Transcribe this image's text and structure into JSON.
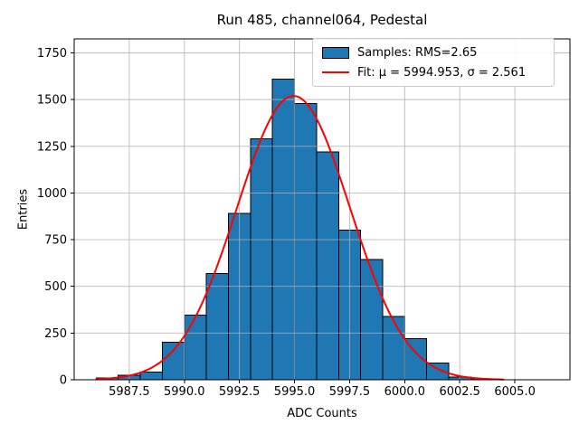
{
  "title": "Run 485, channel064, Pedestal",
  "axes": {
    "xlabel": "ADC Counts",
    "ylabel": "Entries"
  },
  "legend": {
    "samples_label": "Samples: RMS=2.65",
    "fit_label": "Fit: μ = 5994.953, σ = 2.561"
  },
  "colors": {
    "bar_fill": "#1f77b4",
    "bar_edge": "#000000",
    "fit_line": "#ff0000",
    "grid": "#b0b0b0",
    "spine": "#000000",
    "text": "#000000"
  },
  "chart_data": {
    "type": "bar",
    "subtype": "histogram_with_gaussian_fit",
    "title": "Run 485, channel064, Pedestal",
    "xlabel": "ADC Counts",
    "ylabel": "Entries",
    "bin_edges": [
      5986,
      5987,
      5988,
      5989,
      5990,
      5991,
      5992,
      5993,
      5994,
      5995,
      5996,
      5997,
      5998,
      5999,
      6000,
      6001,
      6002,
      6003,
      6004
    ],
    "counts": [
      10,
      25,
      40,
      200,
      345,
      570,
      890,
      1290,
      1610,
      1480,
      1220,
      800,
      645,
      340,
      220,
      90,
      15,
      5
    ],
    "fit": {
      "shape": "gaussian",
      "mu": 5994.953,
      "sigma": 2.561,
      "amplitude": 1520,
      "x_range": [
        5986.0,
        6004.5
      ]
    },
    "stats": {
      "rms": 2.65,
      "fit_mu": 5994.953,
      "fit_sigma": 2.561
    },
    "xlim": [
      5985.0,
      6007.5
    ],
    "ylim": [
      0,
      1825
    ],
    "xticks": [
      5987.5,
      5990.0,
      5992.5,
      5995.0,
      5997.5,
      6000.0,
      6002.5,
      6005.0
    ],
    "xtick_labels": [
      "5987.5",
      "5990.0",
      "5992.5",
      "5995.0",
      "5997.5",
      "6000.0",
      "6002.5",
      "6005.0"
    ],
    "yticks": [
      0,
      250,
      500,
      750,
      1000,
      1250,
      1500,
      1750
    ],
    "ytick_labels": [
      "0",
      "250",
      "500",
      "750",
      "1000",
      "1250",
      "1500",
      "1750"
    ],
    "grid": true,
    "grid_above_bars": true,
    "legend_position": "upper right",
    "series": [
      {
        "name": "Samples: RMS=2.65",
        "style": "filled-bars"
      },
      {
        "name": "Fit: μ = 5994.953, σ = 2.561",
        "style": "red-line"
      }
    ]
  }
}
